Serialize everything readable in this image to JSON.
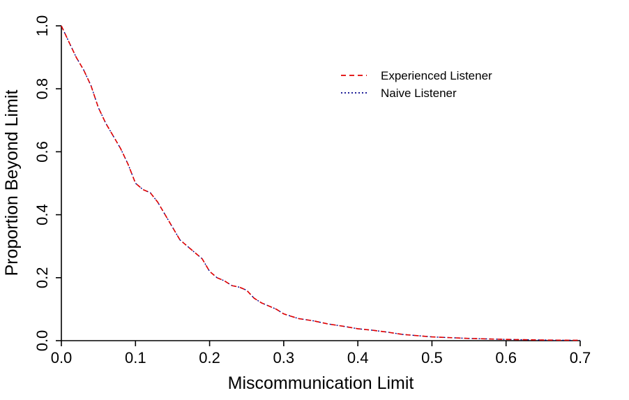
{
  "chart_data": {
    "type": "line",
    "title": "",
    "xlabel": "Miscommunication Limit",
    "ylabel": "Proportion Beyond Limit",
    "xlim": [
      0.0,
      0.7
    ],
    "ylim": [
      0.0,
      1.0
    ],
    "x_ticks": [
      "0.0",
      "0.1",
      "0.2",
      "0.3",
      "0.4",
      "0.5",
      "0.6",
      "0.7"
    ],
    "y_ticks": [
      "0.0",
      "0.2",
      "0.4",
      "0.6",
      "0.8",
      "1.0"
    ],
    "grid": false,
    "legend_position": "top-right",
    "series": [
      {
        "name": "Experienced Listener",
        "color": "#e00000",
        "dash": "dashed",
        "x": [
          0.0,
          0.01,
          0.02,
          0.03,
          0.04,
          0.05,
          0.06,
          0.07,
          0.08,
          0.09,
          0.1,
          0.11,
          0.12,
          0.13,
          0.14,
          0.15,
          0.16,
          0.17,
          0.18,
          0.19,
          0.2,
          0.21,
          0.22,
          0.23,
          0.24,
          0.25,
          0.26,
          0.27,
          0.28,
          0.29,
          0.3,
          0.32,
          0.34,
          0.36,
          0.38,
          0.4,
          0.42,
          0.44,
          0.46,
          0.48,
          0.5,
          0.55,
          0.6,
          0.65,
          0.7
        ],
        "y": [
          1.0,
          0.95,
          0.9,
          0.86,
          0.81,
          0.74,
          0.69,
          0.65,
          0.61,
          0.56,
          0.5,
          0.48,
          0.47,
          0.44,
          0.4,
          0.36,
          0.32,
          0.3,
          0.28,
          0.26,
          0.22,
          0.2,
          0.19,
          0.175,
          0.17,
          0.16,
          0.135,
          0.12,
          0.11,
          0.1,
          0.085,
          0.07,
          0.063,
          0.053,
          0.046,
          0.038,
          0.033,
          0.027,
          0.02,
          0.016,
          0.012,
          0.007,
          0.004,
          0.002,
          0.001
        ]
      },
      {
        "name": "Naive Listener",
        "color": "#00008b",
        "dash": "dotted",
        "x": [
          0.0,
          0.01,
          0.02,
          0.03,
          0.04,
          0.05,
          0.06,
          0.07,
          0.08,
          0.09,
          0.1,
          0.11,
          0.12,
          0.13,
          0.14,
          0.15,
          0.16,
          0.17,
          0.18,
          0.19,
          0.2,
          0.21,
          0.22,
          0.23,
          0.24,
          0.25,
          0.26,
          0.27,
          0.28,
          0.29,
          0.3,
          0.32,
          0.34,
          0.36,
          0.38,
          0.4,
          0.42,
          0.44,
          0.46,
          0.48,
          0.5,
          0.55,
          0.6,
          0.65,
          0.7
        ],
        "y": [
          1.0,
          0.95,
          0.9,
          0.86,
          0.81,
          0.74,
          0.69,
          0.65,
          0.61,
          0.56,
          0.5,
          0.48,
          0.47,
          0.44,
          0.4,
          0.36,
          0.32,
          0.3,
          0.28,
          0.26,
          0.22,
          0.2,
          0.19,
          0.175,
          0.17,
          0.16,
          0.135,
          0.12,
          0.11,
          0.1,
          0.085,
          0.07,
          0.063,
          0.053,
          0.046,
          0.038,
          0.033,
          0.027,
          0.02,
          0.016,
          0.012,
          0.007,
          0.004,
          0.002,
          0.001
        ]
      }
    ]
  }
}
